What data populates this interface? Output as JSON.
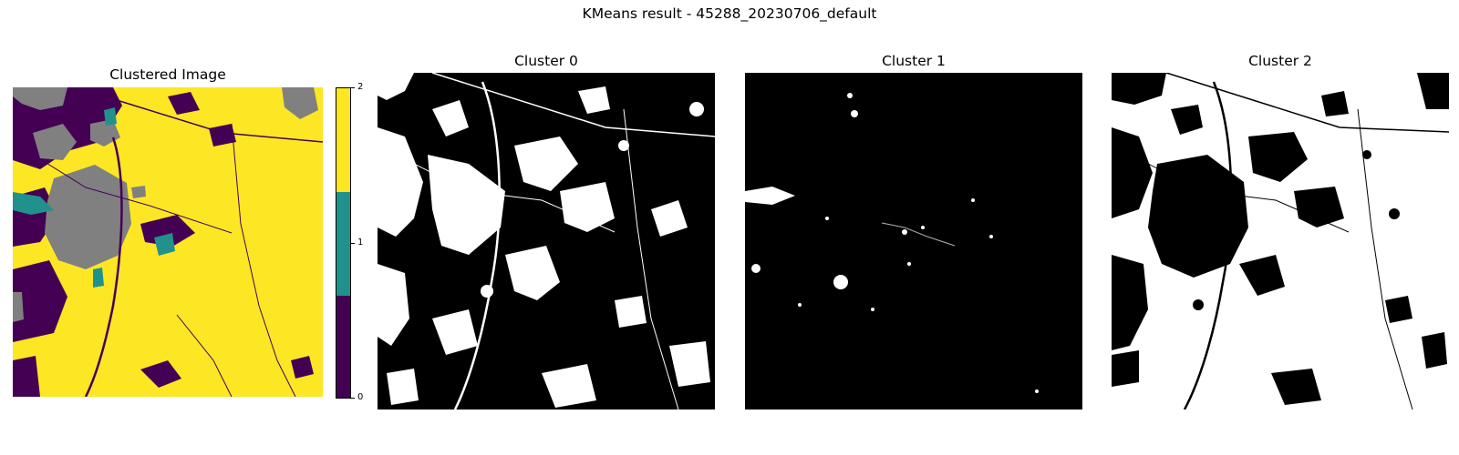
{
  "figure": {
    "suptitle": "KMeans result - 45288_20230706_default"
  },
  "panels": [
    {
      "id": "clustered",
      "title": "Clustered Image"
    },
    {
      "id": "cluster0",
      "title": "Cluster 0"
    },
    {
      "id": "cluster1",
      "title": "Cluster 1"
    },
    {
      "id": "cluster2",
      "title": "Cluster 2"
    }
  ],
  "colorbar": {
    "ticks": [
      "0",
      "1",
      "2"
    ],
    "colors": [
      "#440154",
      "#21918c",
      "#fde725"
    ]
  },
  "colors": {
    "cluster_0": "#440154",
    "cluster_1": "#21918c",
    "cluster_2": "#fde725",
    "nodata": "#808080",
    "mask_on": "#ffffff",
    "mask_off": "#000000"
  }
}
